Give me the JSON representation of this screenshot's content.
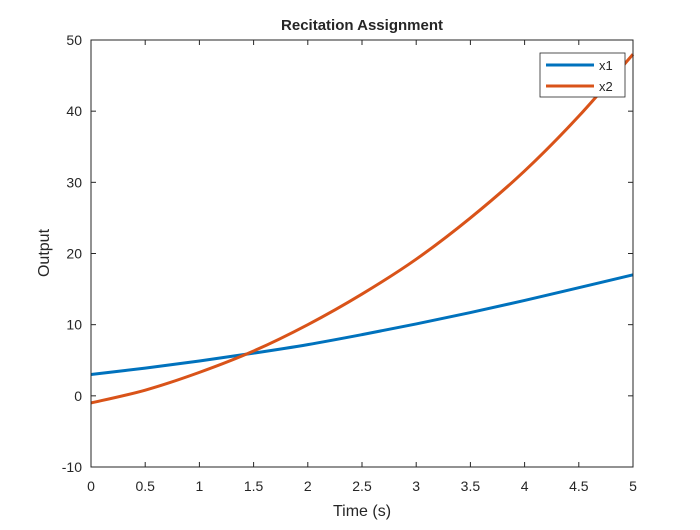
{
  "chart_data": {
    "type": "line",
    "title": "Recitation Assignment",
    "xlabel": "Time (s)",
    "ylabel": "Output",
    "xlim": [
      0,
      5
    ],
    "ylim": [
      -10,
      50
    ],
    "xticks": [
      0,
      0.5,
      1,
      1.5,
      2,
      2.5,
      3,
      3.5,
      4,
      4.5,
      5
    ],
    "xtick_labels": [
      "0",
      "0.5",
      "1",
      "1.5",
      "2",
      "2.5",
      "3",
      "3.5",
      "4",
      "4.5",
      "5"
    ],
    "yticks": [
      -10,
      0,
      10,
      20,
      30,
      40,
      50
    ],
    "ytick_labels": [
      "-10",
      "0",
      "10",
      "20",
      "30",
      "40",
      "50"
    ],
    "grid": false,
    "legend_position": "top-right",
    "x": [
      0,
      0.5,
      1,
      1.5,
      2,
      2.5,
      3,
      3.5,
      4,
      4.5,
      5
    ],
    "series": [
      {
        "name": "x1",
        "color": "#0072BD",
        "values": [
          3.0,
          3.9,
          4.9,
          6.0,
          7.2,
          8.6,
          10.1,
          11.7,
          13.4,
          15.2,
          17.0
        ]
      },
      {
        "name": "x2",
        "color": "#D95319",
        "values": [
          -1.0,
          0.8,
          3.3,
          6.3,
          10.0,
          14.3,
          19.2,
          25.0,
          31.6,
          39.3,
          48.0
        ]
      }
    ]
  }
}
